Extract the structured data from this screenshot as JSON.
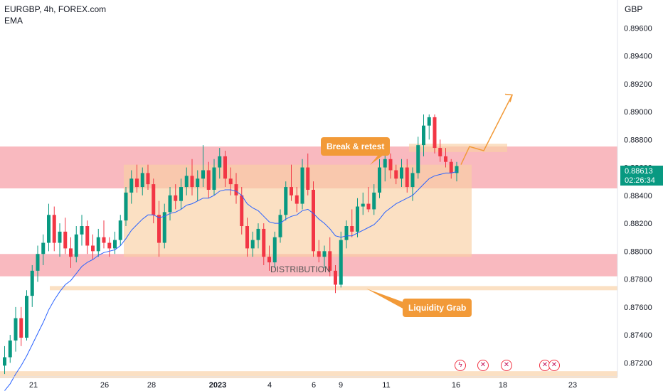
{
  "header": {
    "title": "EURGBP, 4h, FOREX.com",
    "indicator": "EMA"
  },
  "axis": {
    "currency": "GBP"
  },
  "price_badge": {
    "price": "0.88613",
    "countdown": "02:26:34"
  },
  "annotations": {
    "break_retest": "Break & retest",
    "liquidity_grab": "Liquidity Grab",
    "distribution": "DISTRIBUTION"
  },
  "colors": {
    "up": "#089981",
    "down": "#f23645",
    "ema": "#2962ff",
    "zone_red": "#f7a1aa",
    "zone_orange": "#f9cfa3",
    "callout": "#f29a38",
    "badge": "#089981"
  },
  "icons": [
    "flash-event-icon",
    "uk-flag-icon",
    "uk-flag-icon",
    "uk-flag-icon",
    "uk-flag-icon"
  ],
  "chart_data": {
    "type": "candlestick",
    "symbol": "EURGBP",
    "timeframe": "4h",
    "ylim": [
      0.871,
      0.898
    ],
    "y_ticks": [
      "0.89600",
      "0.89400",
      "0.89200",
      "0.89000",
      "0.88800",
      "0.88600",
      "0.88400",
      "0.88200",
      "0.88000",
      "0.87800",
      "0.87600",
      "0.87400",
      "0.87200"
    ],
    "x_ticks": [
      "21",
      "26",
      "28",
      "2023",
      "4",
      "6",
      "9",
      "11",
      "16",
      "18",
      "23"
    ],
    "ohlc": [
      [
        0.8718,
        0.8732,
        0.8712,
        0.8724
      ],
      [
        0.8724,
        0.874,
        0.872,
        0.8736
      ],
      [
        0.8736,
        0.876,
        0.8728,
        0.8752
      ],
      [
        0.8752,
        0.876,
        0.8732,
        0.8738
      ],
      [
        0.8738,
        0.8772,
        0.8736,
        0.8768
      ],
      [
        0.8768,
        0.879,
        0.876,
        0.8786
      ],
      [
        0.8786,
        0.8804,
        0.8778,
        0.8798
      ],
      [
        0.8798,
        0.8812,
        0.879,
        0.8806
      ],
      [
        0.8806,
        0.8834,
        0.88,
        0.8826
      ],
      [
        0.8826,
        0.8832,
        0.88,
        0.8806
      ],
      [
        0.8806,
        0.882,
        0.8796,
        0.8814
      ],
      [
        0.8814,
        0.8824,
        0.8798,
        0.8802
      ],
      [
        0.8802,
        0.881,
        0.8788,
        0.8796
      ],
      [
        0.8796,
        0.8818,
        0.8792,
        0.8812
      ],
      [
        0.8812,
        0.8826,
        0.8804,
        0.8818
      ],
      [
        0.8818,
        0.8822,
        0.8798,
        0.8804
      ],
      [
        0.8804,
        0.8812,
        0.8794,
        0.88
      ],
      [
        0.88,
        0.8816,
        0.8796,
        0.881
      ],
      [
        0.881,
        0.8822,
        0.8802,
        0.8806
      ],
      [
        0.8806,
        0.881,
        0.8796,
        0.8802
      ],
      [
        0.8802,
        0.8814,
        0.8798,
        0.8808
      ],
      [
        0.8808,
        0.8826,
        0.8804,
        0.8822
      ],
      [
        0.8822,
        0.8846,
        0.8818,
        0.8842
      ],
      [
        0.8842,
        0.8858,
        0.8834,
        0.8852
      ],
      [
        0.8852,
        0.8862,
        0.8842,
        0.8846
      ],
      [
        0.8846,
        0.886,
        0.884,
        0.8856
      ],
      [
        0.8856,
        0.8862,
        0.8844,
        0.8848
      ],
      [
        0.8848,
        0.8852,
        0.882,
        0.8826
      ],
      [
        0.8826,
        0.8836,
        0.8796,
        0.8806
      ],
      [
        0.8806,
        0.8834,
        0.8802,
        0.8828
      ],
      [
        0.8828,
        0.8846,
        0.8822,
        0.884
      ],
      [
        0.884,
        0.8848,
        0.883,
        0.8836
      ],
      [
        0.8836,
        0.8852,
        0.883,
        0.8846
      ],
      [
        0.8846,
        0.886,
        0.884,
        0.8854
      ],
      [
        0.8854,
        0.8866,
        0.884,
        0.8846
      ],
      [
        0.8846,
        0.8858,
        0.8836,
        0.8852
      ],
      [
        0.8852,
        0.8876,
        0.8846,
        0.8858
      ],
      [
        0.8858,
        0.8864,
        0.8838,
        0.8844
      ],
      [
        0.8844,
        0.8866,
        0.884,
        0.886
      ],
      [
        0.886,
        0.8874,
        0.8852,
        0.8868
      ],
      [
        0.8868,
        0.8872,
        0.8846,
        0.8852
      ],
      [
        0.8852,
        0.886,
        0.884,
        0.8848
      ],
      [
        0.8848,
        0.8856,
        0.8834,
        0.884
      ],
      [
        0.884,
        0.8846,
        0.8812,
        0.8818
      ],
      [
        0.8818,
        0.8824,
        0.8796,
        0.8802
      ],
      [
        0.8802,
        0.8814,
        0.8796,
        0.8808
      ],
      [
        0.8808,
        0.882,
        0.8802,
        0.8816
      ],
      [
        0.8816,
        0.882,
        0.879,
        0.8796
      ],
      [
        0.8796,
        0.8804,
        0.8786,
        0.8792
      ],
      [
        0.8792,
        0.8814,
        0.8788,
        0.881
      ],
      [
        0.881,
        0.883,
        0.8806,
        0.8826
      ],
      [
        0.8826,
        0.885,
        0.8822,
        0.8846
      ],
      [
        0.8846,
        0.8862,
        0.8836,
        0.884
      ],
      [
        0.884,
        0.8846,
        0.8828,
        0.8834
      ],
      [
        0.8834,
        0.8866,
        0.883,
        0.886
      ],
      [
        0.886,
        0.887,
        0.884,
        0.8844
      ],
      [
        0.8844,
        0.885,
        0.8796,
        0.88
      ],
      [
        0.88,
        0.8808,
        0.8792,
        0.8796
      ],
      [
        0.8796,
        0.8804,
        0.8788,
        0.88
      ],
      [
        0.88,
        0.881,
        0.8782,
        0.8786
      ],
      [
        0.8786,
        0.879,
        0.877,
        0.8776
      ],
      [
        0.8776,
        0.8814,
        0.8774,
        0.8808
      ],
      [
        0.8808,
        0.8822,
        0.8802,
        0.8818
      ],
      [
        0.8818,
        0.883,
        0.881,
        0.8814
      ],
      [
        0.8814,
        0.8838,
        0.881,
        0.8832
      ],
      [
        0.8832,
        0.8842,
        0.8826,
        0.8834
      ],
      [
        0.8834,
        0.8846,
        0.8828,
        0.883
      ],
      [
        0.883,
        0.8848,
        0.8826,
        0.8842
      ],
      [
        0.8842,
        0.8866,
        0.8838,
        0.886
      ],
      [
        0.886,
        0.8874,
        0.885,
        0.8866
      ],
      [
        0.8866,
        0.887,
        0.8852,
        0.8858
      ],
      [
        0.8858,
        0.8862,
        0.8848,
        0.8852
      ],
      [
        0.8852,
        0.8866,
        0.8846,
        0.886
      ],
      [
        0.886,
        0.8866,
        0.8842,
        0.8846
      ],
      [
        0.8846,
        0.886,
        0.8836,
        0.8856
      ],
      [
        0.8856,
        0.8882,
        0.8852,
        0.8876
      ],
      [
        0.8876,
        0.8898,
        0.8868,
        0.889
      ],
      [
        0.889,
        0.8898,
        0.888,
        0.8896
      ],
      [
        0.8896,
        0.8898,
        0.887,
        0.8874
      ],
      [
        0.8874,
        0.888,
        0.8864,
        0.8868
      ],
      [
        0.8868,
        0.8874,
        0.886,
        0.8864
      ],
      [
        0.8864,
        0.8866,
        0.8852,
        0.8856
      ],
      [
        0.8856,
        0.8864,
        0.885,
        0.8861
      ]
    ],
    "ema": [
      0.87,
      0.8705,
      0.8712,
      0.8718,
      0.8725,
      0.8733,
      0.8741,
      0.8749,
      0.8758,
      0.8765,
      0.8771,
      0.8776,
      0.8779,
      0.8784,
      0.8789,
      0.8792,
      0.8794,
      0.8797,
      0.8799,
      0.88,
      0.8801,
      0.8804,
      0.8809,
      0.8815,
      0.8819,
      0.8823,
      0.8826,
      0.8826,
      0.8824,
      0.8825,
      0.8827,
      0.8828,
      0.883,
      0.8833,
      0.8834,
      0.8836,
      0.8838,
      0.8838,
      0.884,
      0.8843,
      0.8844,
      0.8844,
      0.8843,
      0.884,
      0.8834,
      0.8831,
      0.8829,
      0.8825,
      0.8821,
      0.882,
      0.882,
      0.8823,
      0.8825,
      0.8826,
      0.8829,
      0.883,
      0.8827,
      0.8823,
      0.882,
      0.8816,
      0.8811,
      0.881,
      0.8811,
      0.8811,
      0.8813,
      0.8815,
      0.8817,
      0.8819,
      0.8823,
      0.8828,
      0.8831,
      0.8834,
      0.8836,
      0.8838,
      0.884,
      0.8844,
      0.8848,
      0.8852,
      0.8854,
      0.8855,
      0.8856,
      0.8856,
      0.8857
    ],
    "zones": [
      {
        "type": "supply",
        "from": 0.8845,
        "to": 0.8875,
        "color": "red"
      },
      {
        "type": "demand",
        "from": 0.8782,
        "to": 0.8798,
        "color": "red"
      },
      {
        "type": "range",
        "from": 0.8796,
        "to": 0.8862,
        "color": "orange"
      },
      {
        "type": "liquidity",
        "from": 0.8772,
        "to": 0.8775,
        "color": "orange"
      },
      {
        "type": "retest",
        "from": 0.8871,
        "to": 0.8877,
        "color": "orange"
      },
      {
        "type": "bottom",
        "from": 0.8709,
        "to": 0.8714,
        "color": "orange"
      }
    ],
    "projection": [
      [
        0.8862
      ],
      [
        0.8875
      ],
      [
        0.8872
      ],
      [
        0.8912
      ]
    ],
    "last_price": 0.88613
  }
}
